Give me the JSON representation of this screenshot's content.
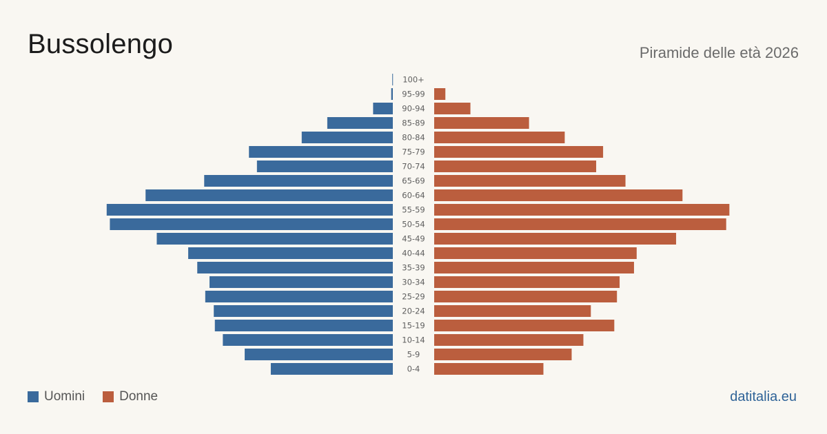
{
  "header": {
    "title": "Bussolengo",
    "subtitle": "Piramide delle età 2026"
  },
  "legend": {
    "men_label": "Uomini",
    "women_label": "Donne"
  },
  "footer": {
    "source": "datitalia.eu"
  },
  "colors": {
    "men": "#3a6a9c",
    "women": "#bb5e3e",
    "background": "#f9f7f2"
  },
  "chart_data": {
    "type": "bar",
    "orientation": "horizontal-pyramid",
    "title": "Bussolengo",
    "subtitle": "Piramide delle età 2026",
    "categories": [
      "100+",
      "95-99",
      "90-94",
      "85-89",
      "80-84",
      "75-79",
      "70-74",
      "65-69",
      "60-64",
      "55-59",
      "50-54",
      "45-49",
      "40-44",
      "35-39",
      "30-34",
      "25-29",
      "20-24",
      "15-19",
      "10-14",
      "5-9",
      "0-4"
    ],
    "series": [
      {
        "name": "Uomini",
        "values": [
          1,
          3,
          37,
          123,
          171,
          270,
          255,
          354,
          464,
          537,
          531,
          443,
          384,
          367,
          344,
          352,
          336,
          334,
          319,
          278,
          229
        ]
      },
      {
        "name": "Donne",
        "values": [
          0,
          21,
          68,
          178,
          245,
          317,
          304,
          359,
          466,
          554,
          548,
          454,
          380,
          375,
          348,
          343,
          294,
          338,
          280,
          258,
          205
        ]
      }
    ],
    "xlim": [
      0,
      560
    ],
    "legend_position": "bottom-left",
    "grid": false
  }
}
